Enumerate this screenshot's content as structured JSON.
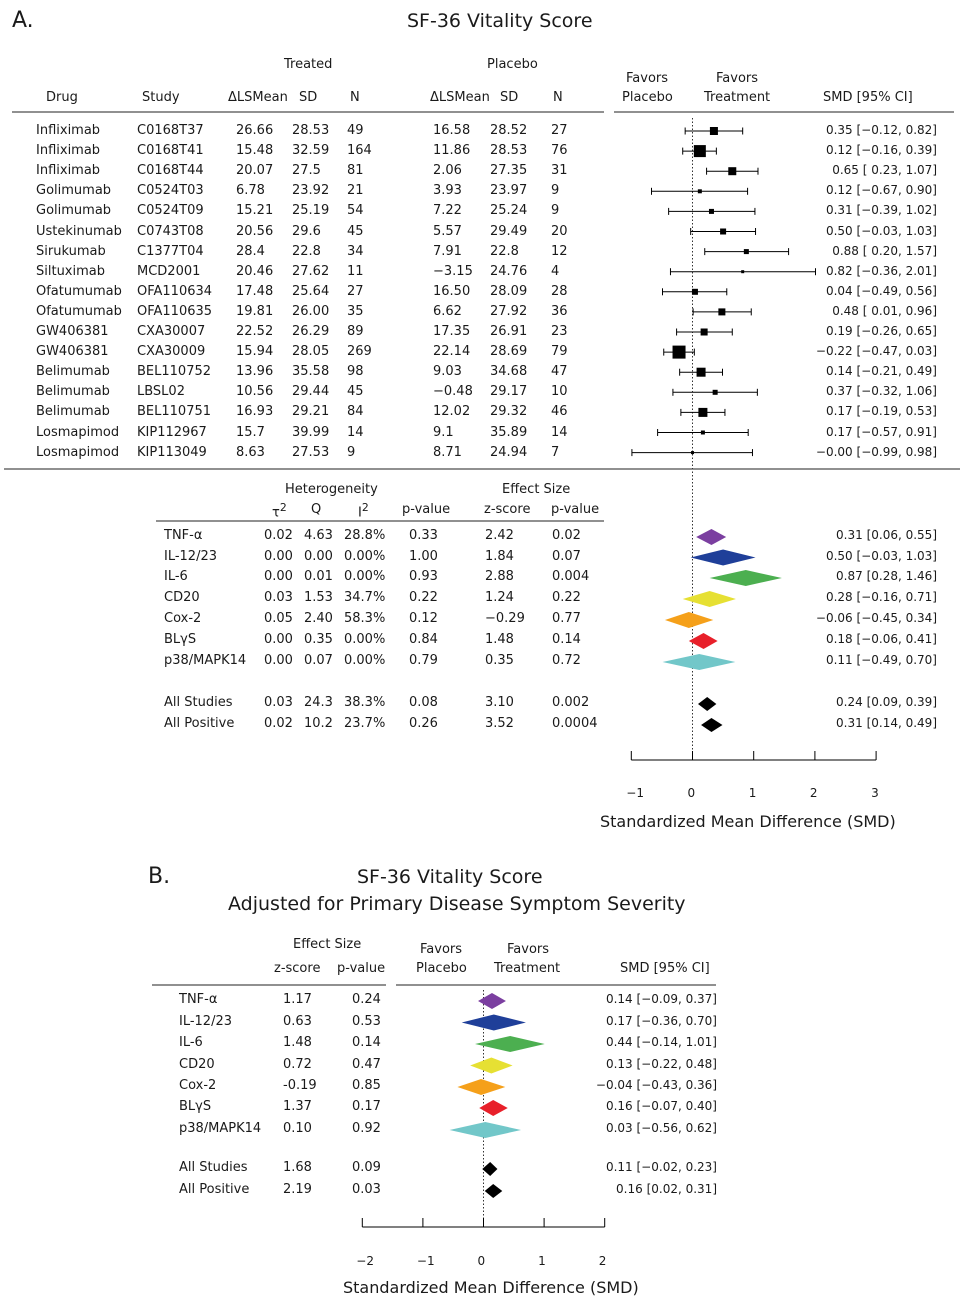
{
  "panel_a": {
    "label": "A.",
    "title": "SF-36 Vitality Score",
    "group_treated": "Treated",
    "group_placebo": "Placebo",
    "col_drug": "Drug",
    "col_study": "Study",
    "col_lsmean": "ΔLSMean",
    "col_sd": "SD",
    "col_n": "N",
    "favors_placebo_1": "Favors",
    "favors_placebo_2": "Placebo",
    "favors_treatment_1": "Favors",
    "favors_treatment_2": "Treatment",
    "col_smd": "SMD [95% CI]",
    "het_label": "Heterogeneity",
    "es_label": "Effect Size",
    "col_tau": "τ",
    "col_tau_sup": "2",
    "col_q": "Q",
    "col_i": "I",
    "col_i_sup": "2",
    "col_pvalue": "p-value",
    "col_zscore": "z-score",
    "col_pvalue2": "p-value",
    "axis_label": "Standardized Mean Difference (SMD)",
    "axis_ticks": [
      "−1",
      "0",
      "1",
      "2",
      "3"
    ]
  },
  "panel_b": {
    "label": "B.",
    "title_1": "SF-36 Vitality Score",
    "title_2": "Adjusted for Primary Disease Symptom Severity",
    "es_label": "Effect Size",
    "col_zscore": "z-score",
    "col_pvalue": "p-value",
    "favors_placebo_1": "Favors",
    "favors_placebo_2": "Placebo",
    "favors_treatment_1": "Favors",
    "favors_treatment_2": "Treatment",
    "col_smd": "SMD [95% CI]",
    "axis_label": "Standardized Mean Difference (SMD)",
    "axis_ticks": [
      "−2",
      "−1",
      "0",
      "1",
      "2"
    ]
  },
  "chart_data": [
    {
      "type": "scatter",
      "title": "SF-36 Vitality Score",
      "xlabel": "Standardized Mean Difference (SMD)",
      "xlim": [
        -1,
        3
      ],
      "studies": [
        {
          "drug": "Infliximab",
          "study": "C0168T37",
          "t_mean": "26.66",
          "t_sd": "28.53",
          "t_n": "49",
          "p_mean": "16.58",
          "p_sd": "28.52",
          "p_n": "27",
          "smd": 0.35,
          "lo": -0.12,
          "hi": 0.82,
          "ci": "0.35 [−0.12, 0.82]",
          "w": 8
        },
        {
          "drug": "Infliximab",
          "study": "C0168T41",
          "t_mean": "15.48",
          "t_sd": "32.59",
          "t_n": "164",
          "p_mean": "11.86",
          "p_sd": "28.53",
          "p_n": "76",
          "smd": 0.12,
          "lo": -0.16,
          "hi": 0.39,
          "ci": "0.12 [−0.16, 0.39]",
          "w": 12
        },
        {
          "drug": "Infliximab",
          "study": "C0168T44",
          "t_mean": "20.07",
          "t_sd": "27.5",
          "t_n": "81",
          "p_mean": "2.06",
          "p_sd": "27.35",
          "p_n": "31",
          "smd": 0.65,
          "lo": 0.23,
          "hi": 1.07,
          "ci": "0.65 [ 0.23, 1.07]",
          "w": 8
        },
        {
          "drug": "Golimumab",
          "study": "C0524T03",
          "t_mean": "6.78",
          "t_sd": "23.92",
          "t_n": "21",
          "p_mean": "3.93",
          "p_sd": "23.97",
          "p_n": "9",
          "smd": 0.12,
          "lo": -0.67,
          "hi": 0.9,
          "ci": "0.12 [−0.67, 0.90]",
          "w": 4
        },
        {
          "drug": "Golimumab",
          "study": "C0524T09",
          "t_mean": "15.21",
          "t_sd": "25.19",
          "t_n": "54",
          "p_mean": "7.22",
          "p_sd": "25.24",
          "p_n": "9",
          "smd": 0.31,
          "lo": -0.39,
          "hi": 1.02,
          "ci": "0.31 [−0.39, 1.02]",
          "w": 5
        },
        {
          "drug": "Ustekinumab",
          "study": "C0743T08",
          "t_mean": "20.56",
          "t_sd": "29.6",
          "t_n": "45",
          "p_mean": "5.57",
          "p_sd": "29.49",
          "p_n": "20",
          "smd": 0.5,
          "lo": -0.03,
          "hi": 1.03,
          "ci": "0.50 [−0.03, 1.03]",
          "w": 6
        },
        {
          "drug": "Sirukumab",
          "study": "C1377T04",
          "t_mean": "28.4",
          "t_sd": "22.8",
          "t_n": "34",
          "p_mean": "7.91",
          "p_sd": "22.8",
          "p_n": "12",
          "smd": 0.88,
          "lo": 0.2,
          "hi": 1.57,
          "ci": "0.88 [ 0.20, 1.57]",
          "w": 5
        },
        {
          "drug": "Siltuximab",
          "study": "MCD2001",
          "t_mean": "20.46",
          "t_sd": "27.62",
          "t_n": "11",
          "p_mean": "−3.15",
          "p_sd": "24.76",
          "p_n": "4",
          "smd": 0.82,
          "lo": -0.36,
          "hi": 2.01,
          "ci": "0.82 [−0.36, 2.01]",
          "w": 3
        },
        {
          "drug": "Ofatumumab",
          "study": "OFA110634",
          "t_mean": "17.48",
          "t_sd": "25.64",
          "t_n": "27",
          "p_mean": "16.50",
          "p_sd": "28.09",
          "p_n": "28",
          "smd": 0.04,
          "lo": -0.49,
          "hi": 0.56,
          "ci": "0.04 [−0.49, 0.56]",
          "w": 6
        },
        {
          "drug": "Ofatumumab",
          "study": "OFA110635",
          "t_mean": "19.81",
          "t_sd": "26.00",
          "t_n": "35",
          "p_mean": "6.62",
          "p_sd": "27.92",
          "p_n": "36",
          "smd": 0.48,
          "lo": 0.01,
          "hi": 0.96,
          "ci": "0.48 [ 0.01, 0.96]",
          "w": 7
        },
        {
          "drug": "GW406381",
          "study": "CXA30007",
          "t_mean": "22.52",
          "t_sd": "26.29",
          "t_n": "89",
          "p_mean": "17.35",
          "p_sd": "26.91",
          "p_n": "23",
          "smd": 0.19,
          "lo": -0.26,
          "hi": 0.65,
          "ci": "0.19 [−0.26, 0.65]",
          "w": 7
        },
        {
          "drug": "GW406381",
          "study": "CXA30009",
          "t_mean": "15.94",
          "t_sd": "28.05",
          "t_n": "269",
          "p_mean": "22.14",
          "p_sd": "28.69",
          "p_n": "79",
          "smd": -0.22,
          "lo": -0.47,
          "hi": 0.03,
          "ci": "−0.22 [−0.47, 0.03]",
          "w": 13
        },
        {
          "drug": "Belimumab",
          "study": "BEL110752",
          "t_mean": "13.96",
          "t_sd": "35.58",
          "t_n": "98",
          "p_mean": "9.03",
          "p_sd": "34.68",
          "p_n": "47",
          "smd": 0.14,
          "lo": -0.21,
          "hi": 0.49,
          "ci": "0.14 [−0.21, 0.49]",
          "w": 9
        },
        {
          "drug": "Belimumab",
          "study": "LBSL02",
          "t_mean": "10.56",
          "t_sd": "29.44",
          "t_n": "45",
          "p_mean": "−0.48",
          "p_sd": "29.17",
          "p_n": "10",
          "smd": 0.37,
          "lo": -0.32,
          "hi": 1.06,
          "ci": "0.37 [−0.32, 1.06]",
          "w": 5
        },
        {
          "drug": "Belimumab",
          "study": "BEL110751",
          "t_mean": "16.93",
          "t_sd": "29.21",
          "t_n": "84",
          "p_mean": "12.02",
          "p_sd": "29.32",
          "p_n": "46",
          "smd": 0.17,
          "lo": -0.19,
          "hi": 0.53,
          "ci": "0.17 [−0.19, 0.53]",
          "w": 9
        },
        {
          "drug": "Losmapimod",
          "study": "KIP112967",
          "t_mean": "15.7",
          "t_sd": "39.99",
          "t_n": "14",
          "p_mean": "9.1",
          "p_sd": "35.89",
          "p_n": "14",
          "smd": 0.17,
          "lo": -0.57,
          "hi": 0.91,
          "ci": "0.17 [−0.57, 0.91]",
          "w": 4
        },
        {
          "drug": "Losmapimod",
          "study": "KIP113049",
          "t_mean": "8.63",
          "t_sd": "27.53",
          "t_n": "9",
          "p_mean": "8.71",
          "p_sd": "24.94",
          "p_n": "7",
          "smd": -0.0,
          "lo": -0.99,
          "hi": 0.98,
          "ci": "−0.00 [−0.99, 0.98]",
          "w": 3
        }
      ],
      "summary": [
        {
          "label": "TNF-α",
          "tau2": "0.02",
          "q": "4.63",
          "i2": "28.8%",
          "pval": "0.33",
          "z": "2.42",
          "p": "0.02",
          "smd": 0.31,
          "lo": 0.06,
          "hi": 0.55,
          "ci": "0.31 [0.06, 0.55]",
          "color": "#7b3fa0"
        },
        {
          "label": "IL-12/23",
          "tau2": "0.00",
          "q": "0.00",
          "i2": "0.00%",
          "pval": "1.00",
          "z": "1.84",
          "p": "0.07",
          "smd": 0.5,
          "lo": -0.03,
          "hi": 1.03,
          "ci": "0.50 [−0.03, 1.03]",
          "color": "#1f3f99"
        },
        {
          "label": "IL-6",
          "tau2": "0.00",
          "q": "0.01",
          "i2": "0.00%",
          "pval": "0.93",
          "z": "2.88",
          "p": "0.004",
          "smd": 0.87,
          "lo": 0.28,
          "hi": 1.46,
          "ci": "0.87 [0.28, 1.46]",
          "color": "#4caf50"
        },
        {
          "label": "CD20",
          "tau2": "0.03",
          "q": "1.53",
          "i2": "34.7%",
          "pval": "0.22",
          "z": "1.24",
          "p": "0.22",
          "smd": 0.28,
          "lo": -0.16,
          "hi": 0.71,
          "ci": "0.28 [−0.16, 0.71]",
          "color": "#e6e033"
        },
        {
          "label": "Cox-2",
          "tau2": "0.05",
          "q": "2.40",
          "i2": "58.3%",
          "pval": "0.12",
          "z": "−0.29",
          "p": "0.77",
          "smd": -0.06,
          "lo": -0.45,
          "hi": 0.34,
          "ci": "−0.06 [−0.45, 0.34]",
          "color": "#f5a01a"
        },
        {
          "label": "BLγS",
          "tau2": "0.00",
          "q": "0.35",
          "i2": "0.00%",
          "pval": "0.84",
          "z": "1.48",
          "p": "0.14",
          "smd": 0.18,
          "lo": -0.06,
          "hi": 0.41,
          "ci": "0.18 [−0.06, 0.41]",
          "color": "#e8202a"
        },
        {
          "label": "p38/MAPK14",
          "tau2": "0.00",
          "q": "0.07",
          "i2": "0.00%",
          "pval": "0.79",
          "z": "0.35",
          "p": "0.72",
          "smd": 0.11,
          "lo": -0.49,
          "hi": 0.7,
          "ci": "0.11 [−0.49, 0.70]",
          "color": "#72c7c9"
        },
        {
          "label": "All Studies",
          "tau2": "0.03",
          "q": "24.3",
          "i2": "38.3%",
          "pval": "0.08",
          "z": "3.10",
          "p": "0.002",
          "smd": 0.24,
          "lo": 0.09,
          "hi": 0.39,
          "ci": "0.24 [0.09, 0.39]",
          "color": "#000000"
        },
        {
          "label": "All Positive",
          "tau2": "0.02",
          "q": "10.2",
          "i2": "23.7%",
          "pval": "0.26",
          "z": "3.52",
          "p": "0.0004",
          "smd": 0.31,
          "lo": 0.14,
          "hi": 0.49,
          "ci": "0.31 [0.14, 0.49]",
          "color": "#000000"
        }
      ]
    },
    {
      "type": "scatter",
      "title": "SF-36 Vitality Score Adjusted for Primary Disease Symptom Severity",
      "xlabel": "Standardized Mean Difference (SMD)",
      "xlim": [
        -2,
        2
      ],
      "summary": [
        {
          "label": "TNF-α",
          "z": "1.17",
          "p": "0.24",
          "smd": 0.14,
          "lo": -0.09,
          "hi": 0.37,
          "ci": "0.14 [−0.09, 0.37]",
          "color": "#7b3fa0"
        },
        {
          "label": "IL-12/23",
          "z": "0.63",
          "p": "0.53",
          "smd": 0.17,
          "lo": -0.36,
          "hi": 0.7,
          "ci": "0.17 [−0.36, 0.70]",
          "color": "#1f3f99"
        },
        {
          "label": "IL-6",
          "z": "1.48",
          "p": "0.14",
          "smd": 0.44,
          "lo": -0.14,
          "hi": 1.01,
          "ci": "0.44 [−0.14, 1.01]",
          "color": "#4caf50"
        },
        {
          "label": "CD20",
          "z": "0.72",
          "p": "0.47",
          "smd": 0.13,
          "lo": -0.22,
          "hi": 0.48,
          "ci": "0.13 [−0.22, 0.48]",
          "color": "#e6e033"
        },
        {
          "label": "Cox-2",
          "z": "-0.19",
          "p": "0.85",
          "smd": -0.04,
          "lo": -0.43,
          "hi": 0.36,
          "ci": "−0.04 [−0.43, 0.36]",
          "color": "#f5a01a"
        },
        {
          "label": "BLγS",
          "z": "1.37",
          "p": "0.17",
          "smd": 0.16,
          "lo": -0.07,
          "hi": 0.4,
          "ci": "0.16 [−0.07, 0.40]",
          "color": "#e8202a"
        },
        {
          "label": "p38/MAPK14",
          "z": "0.10",
          "p": "0.92",
          "smd": 0.03,
          "lo": -0.56,
          "hi": 0.62,
          "ci": "0.03 [−0.56, 0.62]",
          "color": "#72c7c9"
        },
        {
          "label": "All Studies",
          "z": "1.68",
          "p": "0.09",
          "smd": 0.11,
          "lo": -0.02,
          "hi": 0.23,
          "ci": "0.11 [−0.02, 0.23]",
          "color": "#000000"
        },
        {
          "label": "All Positive",
          "z": "2.19",
          "p": "0.03",
          "smd": 0.16,
          "lo": 0.02,
          "hi": 0.31,
          "ci": "0.16 [0.02, 0.31]",
          "color": "#000000"
        }
      ]
    }
  ]
}
